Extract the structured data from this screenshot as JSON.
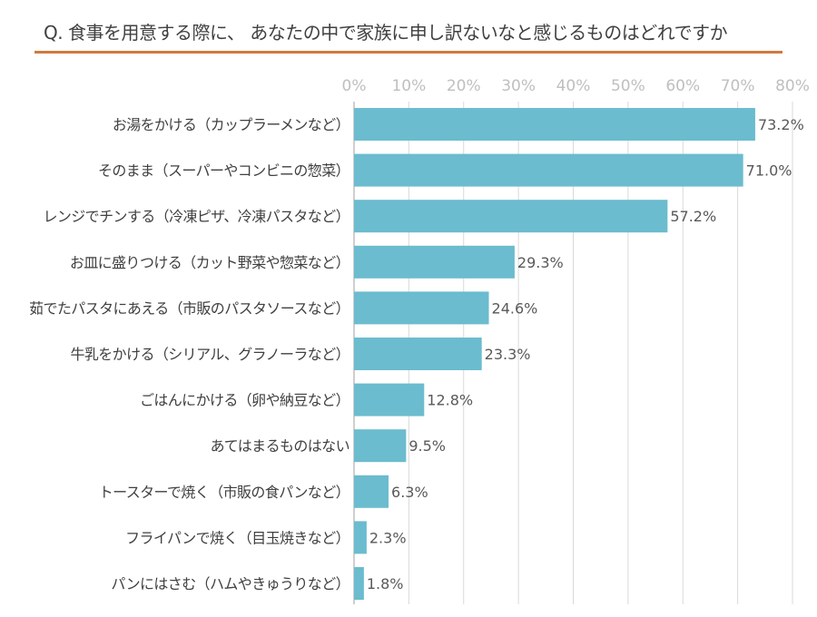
{
  "chart_data": {
    "type": "bar",
    "orientation": "horizontal",
    "title": "Q. 食事を用意する際に、 あなたの中で家族に申し訳ないなと感じるものはどれですか",
    "categories": [
      "お湯をかける（カップラーメンなど）",
      "そのまま（スーパーやコンビニの惣菜）",
      "レンジでチンする（冷凍ピザ、冷凍パスタなど）",
      "お皿に盛りつける（カット野菜や惣菜など）",
      "茹でたパスタにあえる（市販のパスタソースなど）",
      "牛乳をかける（シリアル、グラノーラなど）",
      "ごはんにかける（卵や納豆など）",
      "あてはまるものはない",
      "トースターで焼く（市販の食パンなど）",
      "フライパンで焼く（目玉焼きなど）",
      "パンにはさむ（ハムやきゅうりなど）"
    ],
    "values": [
      73.2,
      71.0,
      57.2,
      29.3,
      24.6,
      23.3,
      12.8,
      9.5,
      6.3,
      2.3,
      1.8
    ],
    "data_labels": [
      "73.2%",
      "71.0%",
      "57.2%",
      "29.3%",
      "24.6%",
      "23.3%",
      "12.8%",
      "9.5%",
      "6.3%",
      "2.3%",
      "1.8%"
    ],
    "xlim": [
      0,
      80
    ],
    "xticks": [
      "0%",
      "10%",
      "20%",
      "30%",
      "40%",
      "50%",
      "60%",
      "70%",
      "80%"
    ],
    "xaxis_position": "top",
    "grid": true,
    "legend": "none",
    "bar_color": "#6BBCCE",
    "title_rule_color": "#D07A3E"
  }
}
